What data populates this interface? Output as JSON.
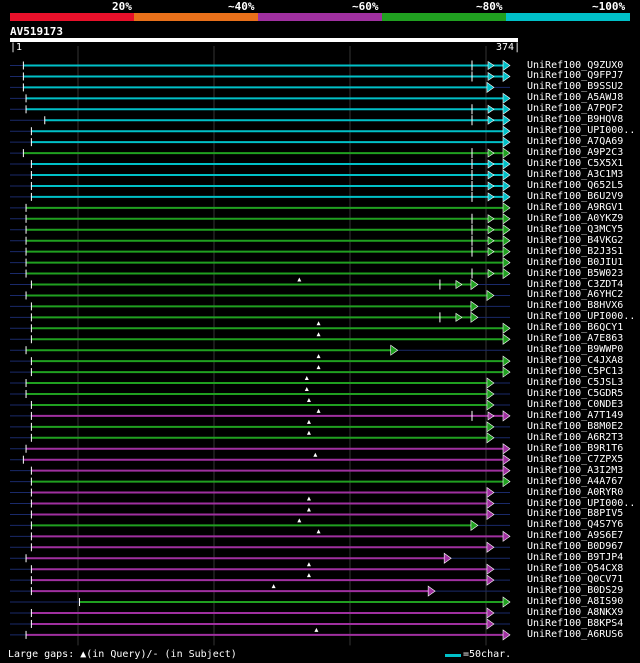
{
  "legend": {
    "percent_labels": [
      "20%",
      "~40%",
      "~60%",
      "~80%",
      "~100%"
    ],
    "colors": [
      "#e8102a",
      "#e8701a",
      "#a030a0",
      "#20a020",
      "#00c0c8"
    ]
  },
  "query": {
    "id": "AV519173",
    "start": "1",
    "end": "374",
    "length": 374
  },
  "hits": [
    {
      "label": "UniRef100_Q9ZUX0",
      "color": "#00c0c8",
      "start": 10,
      "end": 374,
      "extra": true,
      "gap": false
    },
    {
      "label": "UniRef100_Q9FPJ7",
      "color": "#00c0c8",
      "start": 10,
      "end": 374,
      "extra": true,
      "gap": false
    },
    {
      "label": "UniRef100_B9SSU2",
      "color": "#00c0c8",
      "start": 10,
      "end": 362,
      "extra": false,
      "gap": false
    },
    {
      "label": "UniRef100_A5AWJ8",
      "color": "#00c0c8",
      "start": 12,
      "end": 374,
      "extra": false,
      "gap": false
    },
    {
      "label": "UniRef100_A7PQF2",
      "color": "#00c0c8",
      "start": 12,
      "end": 374,
      "extra": true,
      "gap": false
    },
    {
      "label": "UniRef100_B9HQV8",
      "color": "#00c0c8",
      "start": 26,
      "end": 374,
      "extra": true,
      "gap": false
    },
    {
      "label": "UniRef100_UPI000..",
      "color": "#00c0c8",
      "start": 16,
      "end": 374,
      "extra": false,
      "gap": false
    },
    {
      "label": "UniRef100_A7QA69",
      "color": "#00c0c8",
      "start": 16,
      "end": 374,
      "extra": false,
      "gap": false
    },
    {
      "label": "UniRef100_A9P2C3",
      "color": "#20a020",
      "start": 10,
      "end": 374,
      "extra": true,
      "gap": false
    },
    {
      "label": "UniRef100_C5X5X1",
      "color": "#00c0c8",
      "start": 16,
      "end": 374,
      "extra": true,
      "gap": false
    },
    {
      "label": "UniRef100_A3C1M3",
      "color": "#00c0c8",
      "start": 16,
      "end": 374,
      "extra": true,
      "gap": false
    },
    {
      "label": "UniRef100_Q652L5",
      "color": "#00c0c8",
      "start": 16,
      "end": 374,
      "extra": true,
      "gap": false
    },
    {
      "label": "UniRef100_B6U2V9",
      "color": "#00c0c8",
      "start": 16,
      "end": 374,
      "extra": true,
      "gap": false
    },
    {
      "label": "UniRef100_A9RGV1",
      "color": "#20a020",
      "start": 12,
      "end": 374,
      "extra": false,
      "gap": false
    },
    {
      "label": "UniRef100_A0YKZ9",
      "color": "#20a020",
      "start": 12,
      "end": 374,
      "extra": true,
      "gap": false
    },
    {
      "label": "UniRef100_Q3MCY5",
      "color": "#20a020",
      "start": 12,
      "end": 374,
      "extra": true,
      "gap": false
    },
    {
      "label": "UniRef100_B4VKG2",
      "color": "#20a020",
      "start": 12,
      "end": 374,
      "extra": true,
      "gap": false
    },
    {
      "label": "UniRef100_B2J3S1",
      "color": "#20a020",
      "start": 12,
      "end": 374,
      "extra": true,
      "gap": false
    },
    {
      "label": "UniRef100_B0JIU1",
      "color": "#20a020",
      "start": 12,
      "end": 374,
      "extra": false,
      "gap": false
    },
    {
      "label": "UniRef100_B5W023",
      "color": "#20a020",
      "start": 12,
      "end": 374,
      "extra": true,
      "gap": false
    },
    {
      "label": "UniRef100_C3ZDT4",
      "color": "#20a020",
      "start": 16,
      "end": 350,
      "extra": true,
      "gap": true
    },
    {
      "label": "UniRef100_A6YHC2",
      "color": "#20a020",
      "start": 12,
      "end": 362,
      "extra": false,
      "gap": false
    },
    {
      "label": "UniRef100_B8HVX6",
      "color": "#20a020",
      "start": 16,
      "end": 350,
      "extra": false,
      "gap": false
    },
    {
      "label": "UniRef100_UPI000..",
      "color": "#20a020",
      "start": 16,
      "end": 350,
      "extra": true,
      "gap": false
    },
    {
      "label": "UniRef100_B6QCY1",
      "color": "#20a020",
      "start": 16,
      "end": 374,
      "extra": false,
      "gap": true
    },
    {
      "label": "UniRef100_A7E863",
      "color": "#20a020",
      "start": 16,
      "end": 374,
      "extra": false,
      "gap": true
    },
    {
      "label": "UniRef100_B9WWP0",
      "color": "#20a020",
      "start": 12,
      "end": 290,
      "extra": false,
      "gap": false
    },
    {
      "label": "UniRef100_C4JXA8",
      "color": "#20a020",
      "start": 16,
      "end": 374,
      "extra": false,
      "gap": true
    },
    {
      "label": "UniRef100_C5PC13",
      "color": "#20a020",
      "start": 16,
      "end": 374,
      "extra": false,
      "gap": true
    },
    {
      "label": "UniRef100_C5JSL3",
      "color": "#20a020",
      "start": 12,
      "end": 362,
      "extra": false,
      "gap": true
    },
    {
      "label": "UniRef100_C5GDR5",
      "color": "#20a020",
      "start": 12,
      "end": 362,
      "extra": false,
      "gap": true
    },
    {
      "label": "UniRef100_C0NDE3",
      "color": "#20a020",
      "start": 16,
      "end": 362,
      "extra": false,
      "gap": true
    },
    {
      "label": "UniRef100_A7T149",
      "color": "#a030a0",
      "start": 16,
      "end": 374,
      "extra": true,
      "gap": true
    },
    {
      "label": "UniRef100_B8M0E2",
      "color": "#20a020",
      "start": 16,
      "end": 362,
      "extra": false,
      "gap": true
    },
    {
      "label": "UniRef100_A6R2T3",
      "color": "#20a020",
      "start": 16,
      "end": 362,
      "extra": false,
      "gap": true
    },
    {
      "label": "UniRef100_B9R1T6",
      "color": "#a030a0",
      "start": 12,
      "end": 374,
      "extra": false,
      "gap": false
    },
    {
      "label": "UniRef100_C7ZPX5",
      "color": "#a030a0",
      "start": 10,
      "end": 374,
      "extra": false,
      "gap": true
    },
    {
      "label": "UniRef100_A3I2M3",
      "color": "#a030a0",
      "start": 16,
      "end": 374,
      "extra": false,
      "gap": false
    },
    {
      "label": "UniRef100_A4A767",
      "color": "#20a020",
      "start": 16,
      "end": 374,
      "extra": false,
      "gap": false
    },
    {
      "label": "UniRef100_A0RYR0",
      "color": "#a030a0",
      "start": 16,
      "end": 362,
      "extra": false,
      "gap": false
    },
    {
      "label": "UniRef100_UPI000..",
      "color": "#a030a0",
      "start": 16,
      "end": 362,
      "extra": false,
      "gap": true
    },
    {
      "label": "UniRef100_B8PIV5",
      "color": "#a030a0",
      "start": 16,
      "end": 362,
      "extra": false,
      "gap": true
    },
    {
      "label": "UniRef100_Q4S7Y6",
      "color": "#20a020",
      "start": 16,
      "end": 350,
      "extra": false,
      "gap": true
    },
    {
      "label": "UniRef100_A9S6E7",
      "color": "#a030a0",
      "start": 16,
      "end": 374,
      "extra": false,
      "gap": true
    },
    {
      "label": "UniRef100_B0D967",
      "color": "#a030a0",
      "start": 16,
      "end": 362,
      "extra": false,
      "gap": false
    },
    {
      "label": "UniRef100_B9TJP4",
      "color": "#a030a0",
      "start": 12,
      "end": 330,
      "extra": false,
      "gap": false
    },
    {
      "label": "UniRef100_Q54CX8",
      "color": "#a030a0",
      "start": 16,
      "end": 362,
      "extra": false,
      "gap": true
    },
    {
      "label": "UniRef100_Q0CV71",
      "color": "#a030a0",
      "start": 16,
      "end": 362,
      "extra": false,
      "gap": true
    },
    {
      "label": "UniRef100_B0DS29",
      "color": "#a030a0",
      "start": 16,
      "end": 318,
      "extra": false,
      "gap": true
    },
    {
      "label": "UniRef100_A8IS90",
      "color": "#20a020",
      "start": 52,
      "end": 374,
      "extra": false,
      "gap": false
    },
    {
      "label": "UniRef100_A8NKX9",
      "color": "#a030a0",
      "start": 16,
      "end": 362,
      "extra": false,
      "gap": false
    },
    {
      "label": "UniRef100_B8KPS4",
      "color": "#a030a0",
      "start": 16,
      "end": 362,
      "extra": false,
      "gap": false
    },
    {
      "label": "UniRef100_A6RUS6",
      "color": "#a030a0",
      "start": 12,
      "end": 374,
      "extra": false,
      "gap": true
    }
  ],
  "footer": {
    "gap_text": "Large gaps: ▲(in Query)/- (in Subject)",
    "scale_text": "=50char."
  }
}
